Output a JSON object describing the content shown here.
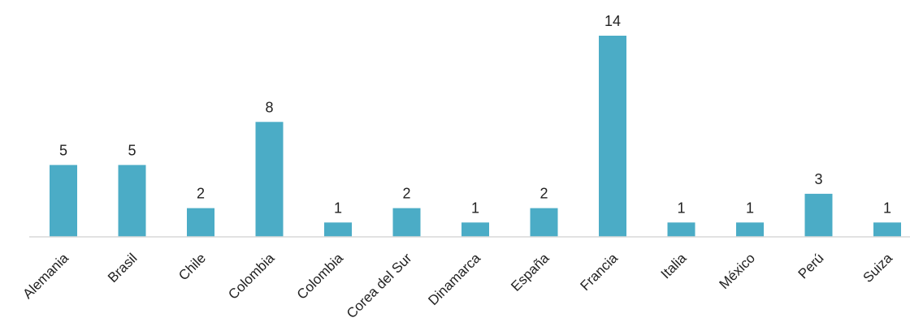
{
  "chart_data": {
    "type": "bar",
    "categories": [
      "Alemania",
      "Brasil",
      "Chile",
      "Colombia",
      "Colombia ",
      "Corea del Sur",
      "Dinamarca",
      "España",
      "Francia",
      "Italia",
      "México",
      "Perú",
      "Suiza"
    ],
    "values": [
      5,
      5,
      2,
      8,
      1,
      2,
      1,
      2,
      14,
      1,
      1,
      3,
      1
    ],
    "title": "",
    "xlabel": "",
    "ylabel": "",
    "ylim": [
      0,
      14
    ],
    "grid": false,
    "legend": "none",
    "bar_color": "#4BACC6",
    "axis_color": "#D9D9D9",
    "data_labels": true
  }
}
